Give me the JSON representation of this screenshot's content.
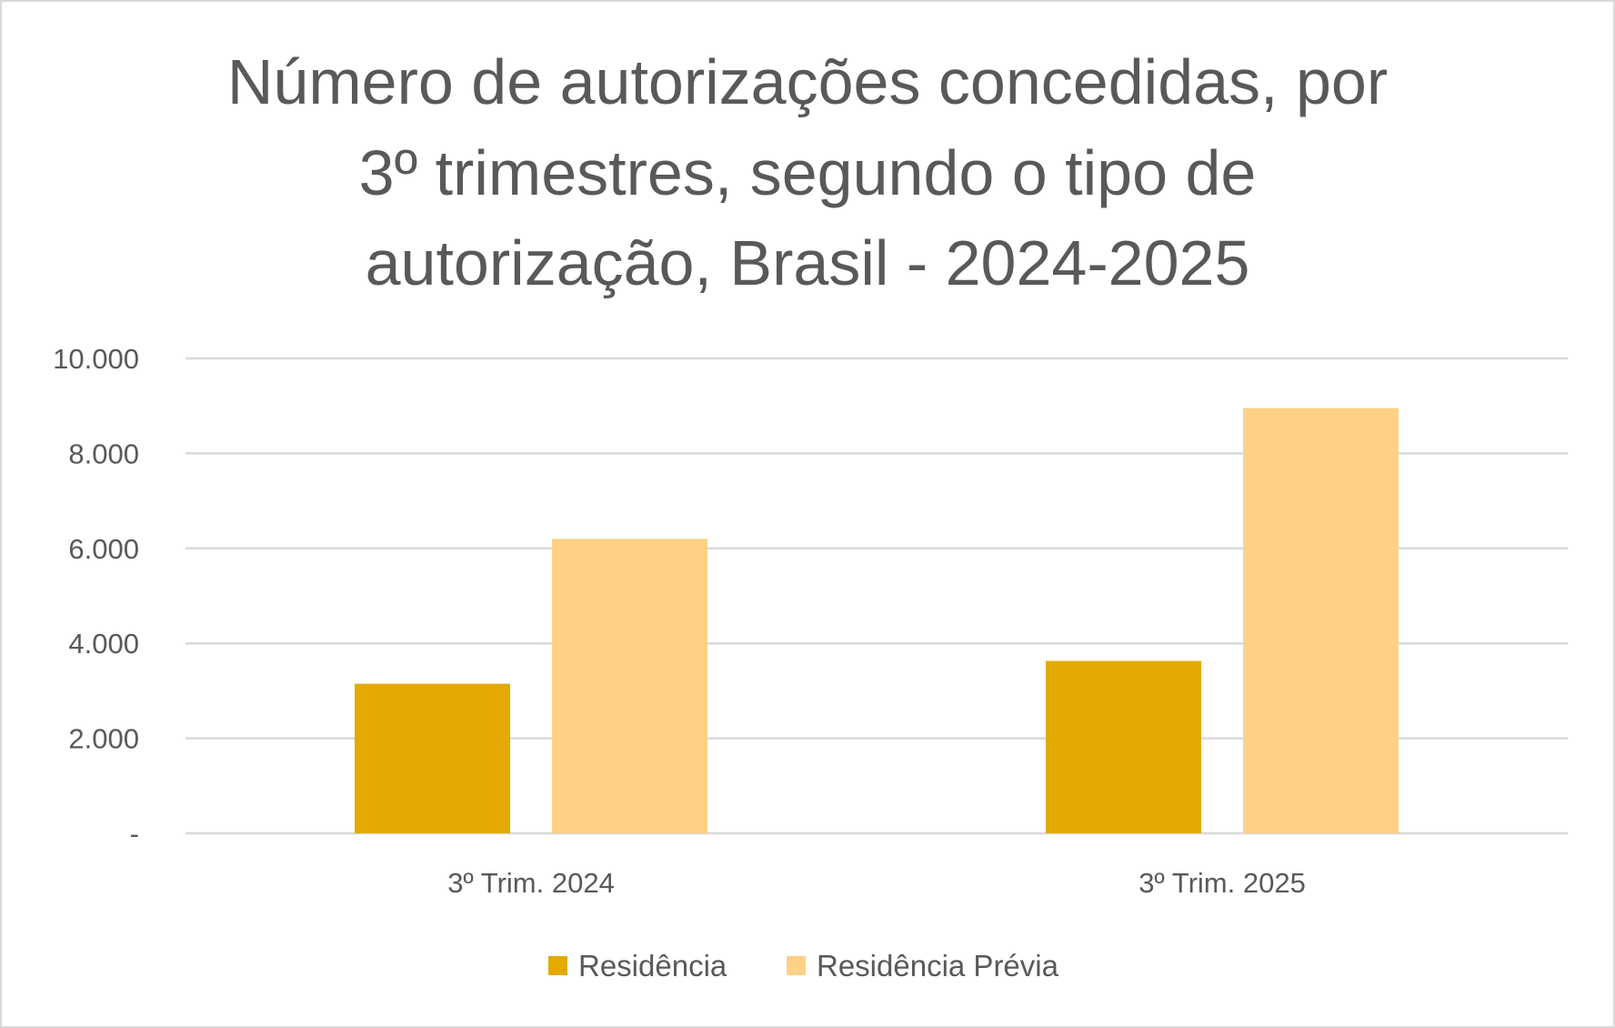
{
  "chart_data": {
    "type": "bar",
    "title_lines": [
      "Número de autorizações concedidas, por",
      "3º trimestres, segundo o tipo de",
      "autorização, Brasil - 2024-2025"
    ],
    "categories": [
      "3º Trim. 2024",
      "3º Trim. 2025"
    ],
    "series": [
      {
        "name": "Residência",
        "color": "#E2AA00",
        "values": [
          3150,
          3630
        ]
      },
      {
        "name": "Residência Prévia",
        "color": "#FED186",
        "values": [
          6200,
          8955
        ]
      }
    ],
    "ylim": [
      0,
      10000
    ],
    "yticks": [
      0,
      2000,
      4000,
      6000,
      8000,
      10000
    ],
    "ytick_labels": [
      "-",
      "2.000",
      "4.000",
      "6.000",
      "8.000",
      "10.000"
    ],
    "grid": true,
    "legend": "bottom"
  }
}
